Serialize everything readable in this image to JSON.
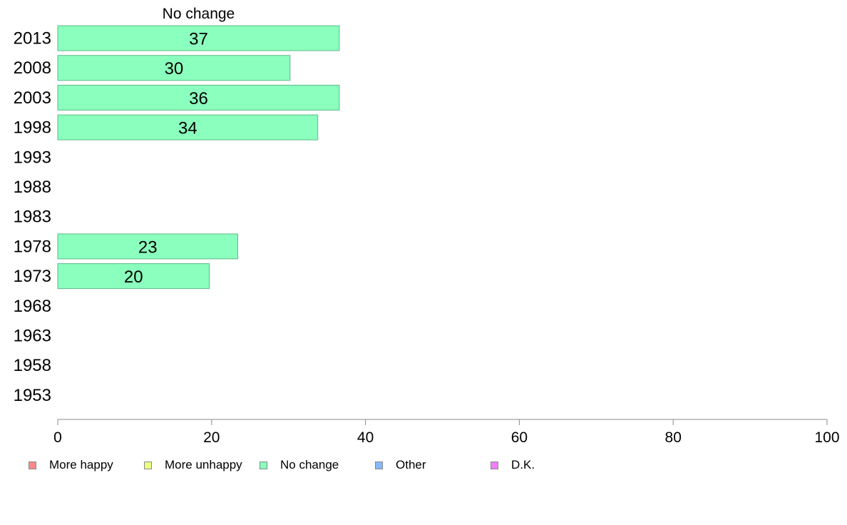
{
  "chart_data": {
    "type": "bar",
    "orientation": "horizontal",
    "title": "No change",
    "categories": [
      "2013",
      "2008",
      "2003",
      "1998",
      "1993",
      "1988",
      "1983",
      "1978",
      "1973",
      "1968",
      "1963",
      "1958",
      "1953"
    ],
    "series": [
      {
        "name": "No change",
        "values": [
          37,
          30,
          36,
          34,
          null,
          null,
          null,
          23,
          20,
          null,
          null,
          null,
          null
        ]
      }
    ],
    "bar_extent": [
      36.6,
      30.2,
      36.6,
      33.8,
      null,
      null,
      null,
      23.4,
      19.7,
      null,
      null,
      null,
      null
    ],
    "xlim": [
      0,
      100
    ],
    "xticks": [
      "0",
      "20",
      "40",
      "60",
      "80",
      "100"
    ],
    "xlabel": "",
    "ylabel": "",
    "grid": false,
    "bar_color": "#8bffbd",
    "bar_border": "#5fba88",
    "legend_position": "bottom",
    "legend": [
      {
        "label": "More happy",
        "color": "#ff8a8a"
      },
      {
        "label": "More unhappy",
        "color": "#ecff7f"
      },
      {
        "label": "No change",
        "color": "#8bffbd"
      },
      {
        "label": "Other",
        "color": "#86b8ff"
      },
      {
        "label": "D.K.",
        "color": "#f07fff"
      }
    ]
  }
}
